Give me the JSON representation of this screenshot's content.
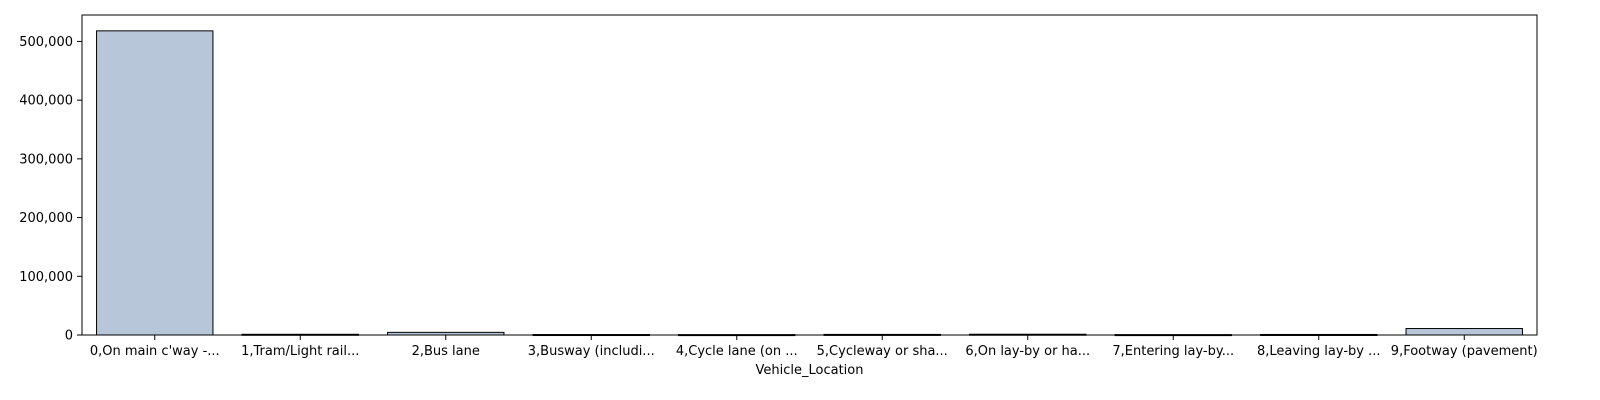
{
  "chart_data": {
    "type": "bar",
    "title": "",
    "xlabel": "Vehicle_Location",
    "ylabel": "",
    "categories": [
      "0,On main c'way -...",
      "1,Tram/Light rail...",
      "2,Bus lane",
      "3,Busway (includi...",
      "4,Cycle lane (on ...",
      "5,Cycleway or sha...",
      "6,On lay-by or ha...",
      "7,Entering lay-by...",
      "8,Leaving lay-by ...",
      "9,Footway (pavement)"
    ],
    "values": [
      518000,
      1200,
      4500,
      800,
      700,
      1000,
      1300,
      700,
      900,
      11000
    ],
    "ylim": [
      0,
      545000
    ],
    "yticks": [
      0,
      100000,
      200000,
      300000,
      400000,
      500000
    ],
    "ytick_labels": [
      "0",
      "100,000",
      "200,000",
      "300,000",
      "400,000",
      "500,000"
    ],
    "grid": false,
    "legend": "none",
    "colors": {
      "bar_fill": "#b8c6d9",
      "bar_edge": "#000000",
      "axis": "#000000"
    }
  }
}
